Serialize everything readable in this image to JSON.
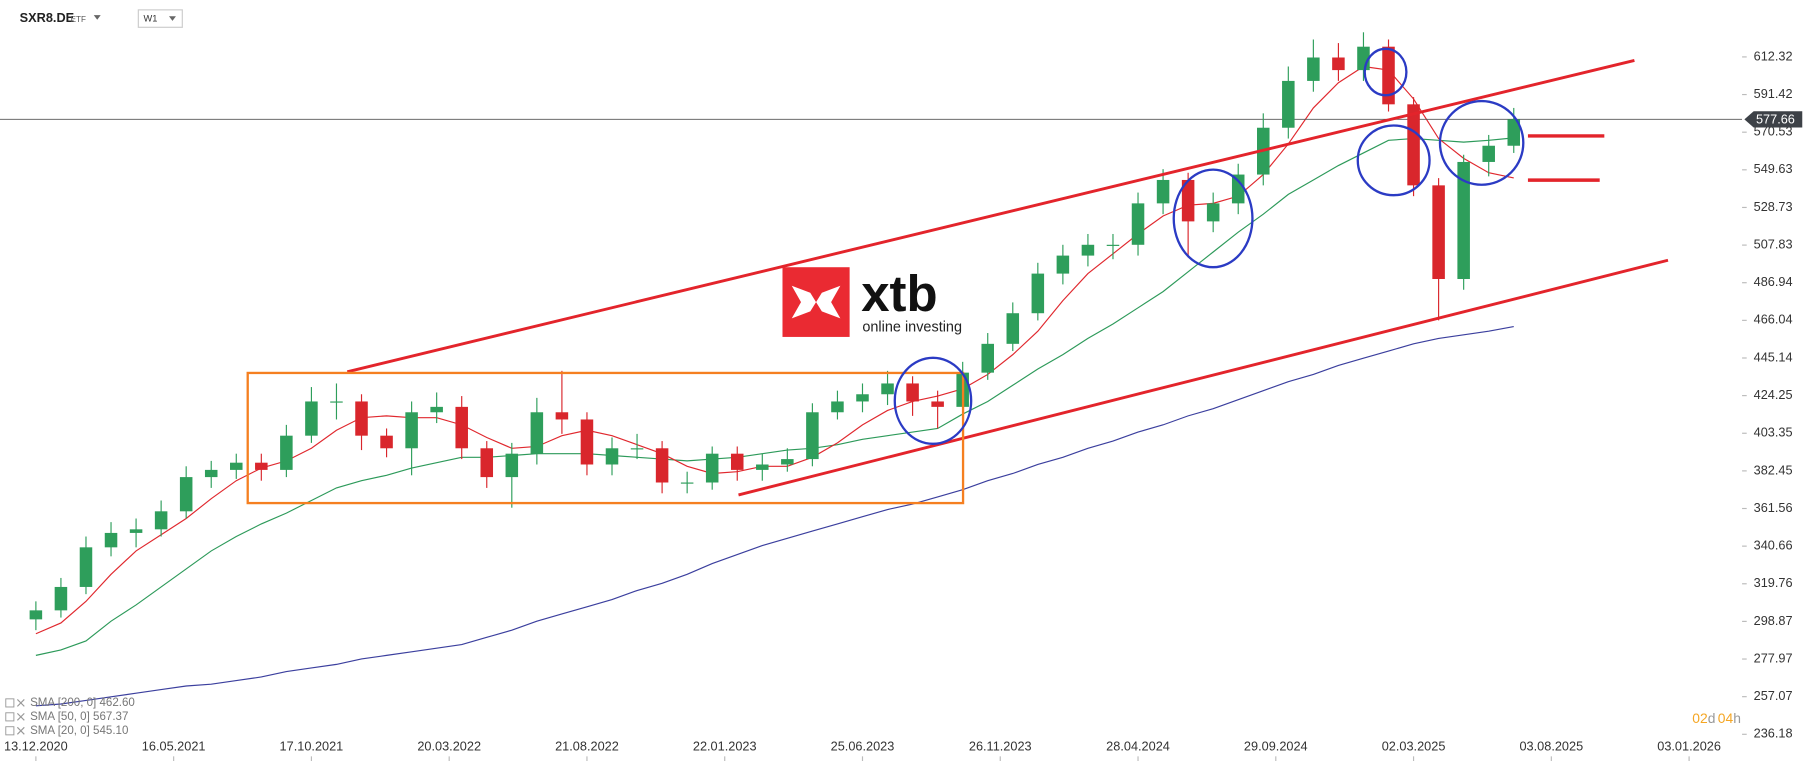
{
  "toolbar": {
    "symbol": "SXR8.DE",
    "asset_class": "ETF",
    "interval": "W1"
  },
  "logo": {
    "name": "xtb",
    "tagline": "online investing"
  },
  "countdown": {
    "days": "02",
    "day_unit": "d",
    "hours": "04",
    "hour_unit": "h"
  },
  "chart_data": {
    "type": "candlestick",
    "x": [
      0,
      4,
      8,
      12,
      16,
      20,
      24,
      28,
      32,
      36,
      40,
      44,
      48,
      52,
      56,
      60,
      64,
      68,
      72,
      76,
      80,
      84,
      88,
      92,
      96,
      100,
      104,
      108,
      112,
      116,
      120,
      124,
      128,
      132,
      136,
      140,
      144,
      148,
      152,
      156,
      160,
      164,
      168,
      172,
      176,
      180,
      184,
      188,
      192,
      196,
      200,
      204,
      208,
      212,
      216,
      220,
      224,
      228,
      232,
      236
    ],
    "xlim": [
      -5.73,
      272.46
    ],
    "xticks": [
      {
        "value": 0,
        "label": "13.12.2020"
      },
      {
        "value": 22,
        "label": "16.05.2021"
      },
      {
        "value": 44,
        "label": "17.10.2021"
      },
      {
        "value": 66,
        "label": "20.03.2022"
      },
      {
        "value": 88,
        "label": "21.08.2022"
      },
      {
        "value": 110,
        "label": "22.01.2023"
      },
      {
        "value": 132,
        "label": "25.06.2023"
      },
      {
        "value": 154,
        "label": "26.11.2023"
      },
      {
        "value": 176,
        "label": "28.04.2024"
      },
      {
        "value": 198,
        "label": "29.09.2024"
      },
      {
        "value": 220,
        "label": "02.03.2025"
      },
      {
        "value": 242,
        "label": "03.08.2025"
      },
      {
        "value": 264,
        "label": "03.01.2026"
      }
    ],
    "ylim": [
      221.35,
      643.93
    ],
    "yticks": [
      236.18,
      257.07,
      277.97,
      298.87,
      319.76,
      340.66,
      361.56,
      382.45,
      403.35,
      424.25,
      445.14,
      466.04,
      486.94,
      507.83,
      528.73,
      549.63,
      570.53,
      591.42,
      612.32
    ],
    "grid": false,
    "open": [
      300,
      305,
      318,
      340,
      348,
      350,
      360,
      379,
      383,
      387,
      383,
      402,
      421,
      421,
      402,
      395,
      415,
      418,
      395,
      379,
      392,
      415,
      411,
      386,
      395,
      395,
      376,
      376,
      392,
      383,
      386,
      389,
      415,
      421,
      425,
      431,
      421,
      418,
      437,
      453,
      470,
      492,
      502,
      508,
      508,
      531,
      544,
      521,
      531,
      547,
      573,
      599,
      612,
      605,
      618,
      586,
      541,
      489,
      554,
      563
    ],
    "high": [
      310,
      323,
      346,
      354,
      356,
      366,
      385,
      388,
      392,
      392,
      408,
      429,
      431,
      425,
      406,
      421,
      426,
      424,
      399,
      398,
      423,
      438,
      415,
      401,
      403,
      399,
      382,
      396,
      396,
      392,
      395,
      420,
      427,
      431,
      438,
      435,
      427,
      443,
      459,
      476,
      498,
      508,
      514,
      514,
      537,
      550,
      548,
      537,
      553,
      581,
      607,
      622,
      620,
      626,
      622,
      590,
      545,
      558,
      569,
      584
    ],
    "low": [
      294,
      301,
      314,
      335,
      340,
      346,
      356,
      373,
      378,
      377,
      379,
      398,
      411,
      394,
      390,
      380,
      409,
      389,
      373,
      362,
      386,
      403,
      380,
      380,
      389,
      370,
      370,
      372,
      377,
      377,
      382,
      385,
      411,
      415,
      419,
      413,
      406,
      414,
      433,
      449,
      466,
      486,
      496,
      500,
      502,
      525,
      501,
      515,
      525,
      541,
      567,
      593,
      599,
      599,
      582,
      535,
      466,
      483,
      546,
      559
    ],
    "close": [
      305,
      318,
      340,
      348,
      350,
      360,
      379,
      383,
      387,
      383,
      402,
      421,
      421,
      402,
      395,
      415,
      418,
      395,
      379,
      392,
      415,
      411,
      386,
      395,
      395,
      376,
      376,
      392,
      383,
      386,
      389,
      415,
      421,
      425,
      431,
      421,
      418,
      437,
      453,
      470,
      492,
      502,
      508,
      508,
      531,
      544,
      521,
      531,
      547,
      573,
      599,
      612,
      605,
      618,
      586,
      541,
      489,
      554,
      563,
      577.66
    ],
    "up_color": "#2e9e5b",
    "down_color": "#d9262c",
    "series": [
      {
        "name": "SMA [200,  0] 462.60",
        "color": "#3b3f9e",
        "values": [
          252,
          253,
          255,
          257,
          259,
          261,
          263,
          264,
          266,
          268,
          271,
          273,
          275,
          278,
          280,
          282,
          284,
          286,
          290,
          294,
          299,
          303,
          307,
          311,
          316,
          320,
          325,
          331,
          336,
          341,
          345,
          349,
          353,
          357,
          361,
          364,
          368,
          372,
          377,
          381,
          386,
          390,
          395,
          399,
          404,
          408,
          413,
          417,
          422,
          427,
          432,
          436,
          441,
          445,
          449,
          453,
          456,
          458,
          460,
          462.6
        ]
      },
      {
        "name": "SMA [50,  0] 567.37",
        "color": "#2d9a5a",
        "values": [
          280,
          283,
          288,
          299,
          308,
          318,
          328,
          338,
          346,
          353,
          359,
          366,
          373,
          377,
          380,
          384,
          387,
          390,
          390,
          391,
          392,
          392,
          392,
          391,
          390,
          389,
          388,
          389,
          390,
          392,
          394,
          395,
          397,
          400,
          402,
          404,
          406,
          414,
          421,
          430,
          439,
          447,
          456,
          464,
          473,
          482,
          493,
          504,
          515,
          525,
          536,
          544,
          552,
          559,
          566,
          567,
          566,
          565,
          566,
          567.37
        ]
      },
      {
        "name": "SMA [20,  0] 545.10",
        "color": "#e0282e",
        "values": [
          292,
          298,
          310,
          325,
          338,
          347,
          356,
          367,
          377,
          384,
          388,
          395,
          405,
          412,
          413,
          412,
          412,
          408,
          401,
          395,
          396,
          402,
          405,
          402,
          397,
          392,
          385,
          381,
          382,
          385,
          385,
          390,
          398,
          408,
          416,
          421,
          424,
          428,
          436,
          447,
          460,
          477,
          492,
          503,
          514,
          524,
          530,
          531,
          535,
          547,
          564,
          584,
          598,
          607,
          605,
          589,
          567,
          556,
          548,
          545.1
        ]
      }
    ],
    "last_price": 577.66
  }
}
